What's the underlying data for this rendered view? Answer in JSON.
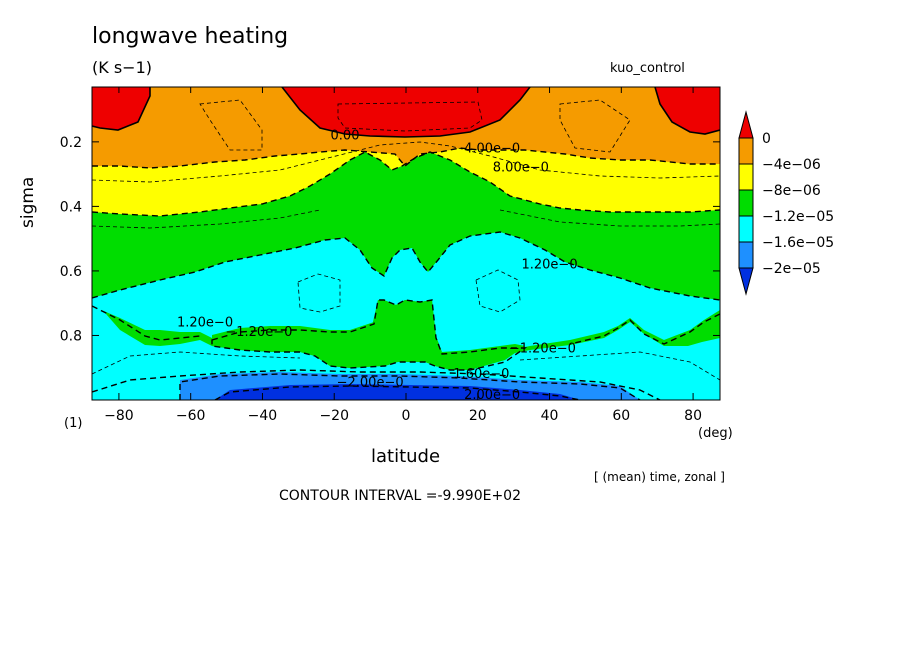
{
  "header": {
    "title": "longwave heating",
    "units": "(K s−1)",
    "experiment": "kuo_control"
  },
  "axes": {
    "ylabel": "sigma",
    "xlabel": "latitude",
    "x_unit": "(deg)",
    "y_level_note": "(1)"
  },
  "footer": {
    "aggregation": "[ (mean) time, zonal ]",
    "contour_interval": "CONTOUR INTERVAL =-9.990E+02"
  },
  "colors": {
    "red": "#ee0000",
    "orange": "#f59b00",
    "yellow": "#ffff00",
    "green": "#00dd00",
    "cyan": "#00ffff",
    "blue": "#1e90ff",
    "darkblue": "#0030e0"
  },
  "chart_data": {
    "type": "heatmap",
    "title": "longwave heating",
    "xlabel": "latitude",
    "ylabel": "sigma",
    "xlim": [
      -87.5,
      87.5
    ],
    "ylim": [
      1.0,
      0.03
    ],
    "y_inverted": true,
    "xticks": [
      -80,
      -60,
      -40,
      -20,
      0,
      20,
      40,
      60,
      80
    ],
    "xtick_labels": [
      "−80",
      "−60",
      "−40",
      "−20",
      "0",
      "20",
      "40",
      "60",
      "80"
    ],
    "yticks": [
      0.2,
      0.4,
      0.6,
      0.8
    ],
    "ytick_labels": [
      "0.2",
      "0.4",
      "0.6",
      "0.8"
    ],
    "colorbar": {
      "labels": [
        "0",
        "−4e−06",
        "−8e−06",
        "−1.2e−05",
        "−1.6e−05",
        "−2e−05"
      ],
      "levels": [
        0,
        -4e-06,
        -8e-06,
        -1.2e-05,
        -1.6e-05,
        -2e-05
      ],
      "colors": [
        "#ee0000",
        "#f59b00",
        "#ffff00",
        "#00dd00",
        "#00ffff",
        "#1e90ff",
        "#0030e0"
      ]
    },
    "contour_labels": [
      {
        "text": "0.00",
        "lat": -17,
        "sigma": 0.18
      },
      {
        "text": "4.00e−0",
        "lat": 24,
        "sigma": 0.22
      },
      {
        "text": "8.00e−0",
        "lat": 32,
        "sigma": 0.28
      },
      {
        "text": "1.20e−0",
        "lat": 40,
        "sigma": 0.58
      },
      {
        "text": "1.20e−0",
        "lat": -56,
        "sigma": 0.76
      },
      {
        "text": "−1.20e−0",
        "lat": -41,
        "sigma": 0.79
      },
      {
        "text": "−1.20e−0",
        "lat": 38,
        "sigma": 0.84
      },
      {
        "text": "1.60e−0",
        "lat": 21,
        "sigma": 0.92
      },
      {
        "text": "−2.00e−0",
        "lat": -10,
        "sigma": 0.945
      },
      {
        "text": "2.00e−0",
        "lat": 24,
        "sigma": 0.985
      }
    ]
  }
}
